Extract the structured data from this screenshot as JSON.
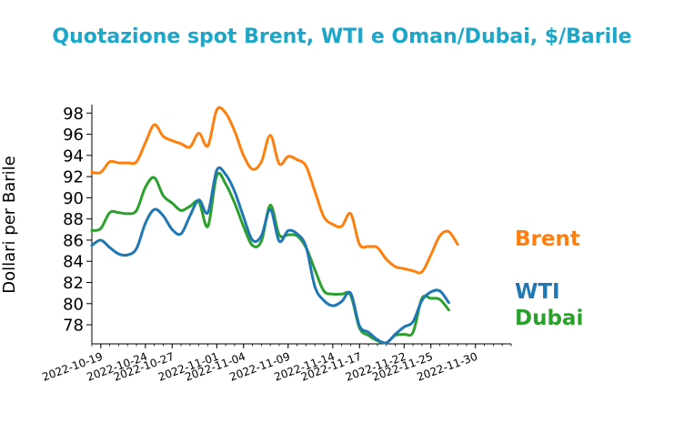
{
  "chart_data": {
    "type": "line",
    "title": "Quotazione spot Brent, WTI e Oman/Dubai, $/Barile",
    "xlabel": "",
    "ylabel": "Dollari per Barile",
    "ylim": [
      76.2,
      98.8
    ],
    "yticks": [
      78,
      80,
      82,
      84,
      86,
      88,
      90,
      92,
      94,
      96,
      98
    ],
    "xlim": [
      "2022-10-18",
      "2022-12-04"
    ],
    "xticks": [
      "2022-10-19",
      "2022-10-24",
      "2022-10-27",
      "2022-11-01",
      "2022-11-04",
      "2022-11-09",
      "2022-11-14",
      "2022-11-17",
      "2022-11-22",
      "2022-11-25",
      "2022-11-30"
    ],
    "grid": false,
    "legend": "inline labels at line ends",
    "x": [
      "2022-10-18",
      "2022-10-19",
      "2022-10-20",
      "2022-10-21",
      "2022-10-22",
      "2022-10-23",
      "2022-10-24",
      "2022-10-25",
      "2022-10-26",
      "2022-10-27",
      "2022-10-28",
      "2022-10-29",
      "2022-10-30",
      "2022-10-31",
      "2022-11-01",
      "2022-11-02",
      "2022-11-03",
      "2022-11-04",
      "2022-11-05",
      "2022-11-06",
      "2022-11-07",
      "2022-11-08",
      "2022-11-09",
      "2022-11-10",
      "2022-11-11",
      "2022-11-12",
      "2022-11-13",
      "2022-11-14",
      "2022-11-15",
      "2022-11-16",
      "2022-11-17",
      "2022-11-18",
      "2022-11-19",
      "2022-11-20",
      "2022-11-21",
      "2022-11-22",
      "2022-11-23",
      "2022-11-24",
      "2022-11-25",
      "2022-11-26",
      "2022-11-27",
      "2022-11-28",
      "2022-11-29",
      "2022-11-30",
      "2022-12-01",
      "2022-12-02",
      "2022-12-03",
      "2022-12-04"
    ],
    "series": [
      {
        "name": "Brent",
        "color": "#ff7f0e",
        "values": [
          92.4,
          92.4,
          93.4,
          93.3,
          93.3,
          93.4,
          95.2,
          96.9,
          95.8,
          95.4,
          95.1,
          94.8,
          96.1,
          94.9,
          98.3,
          98.0,
          96.3,
          94.0,
          92.7,
          93.4,
          95.9,
          93.2,
          93.9,
          93.6,
          93.0,
          90.6,
          88.2,
          87.5,
          87.3,
          88.5,
          85.6,
          85.4,
          85.3,
          84.2,
          83.5,
          83.3,
          83.1,
          83.0,
          84.6,
          86.4,
          86.8,
          85.6,
          null,
          null,
          null,
          null,
          null,
          null
        ]
      },
      {
        "name": "WTI",
        "color": "#1f77b4",
        "values": [
          85.5,
          86.0,
          85.3,
          84.7,
          84.6,
          85.2,
          87.6,
          88.9,
          88.3,
          87.0,
          86.6,
          88.3,
          89.8,
          88.6,
          92.6,
          92.2,
          90.6,
          88.2,
          86.0,
          86.4,
          88.9,
          85.9,
          86.9,
          86.6,
          85.4,
          81.6,
          80.3,
          79.8,
          80.2,
          81.0,
          77.9,
          77.3,
          76.6,
          76.3,
          77.1,
          77.8,
          78.3,
          80.3,
          81.1,
          81.2,
          80.1,
          null,
          null,
          null,
          null,
          null,
          null,
          null
        ]
      },
      {
        "name": "Dubai",
        "color": "#2ca02c",
        "values": [
          86.9,
          87.1,
          88.6,
          88.6,
          88.5,
          88.8,
          91.0,
          91.9,
          90.2,
          89.5,
          88.8,
          89.2,
          89.6,
          87.3,
          92.1,
          91.3,
          89.5,
          87.3,
          85.5,
          85.9,
          89.3,
          86.5,
          86.5,
          86.4,
          85.3,
          83.2,
          81.2,
          80.9,
          80.9,
          80.8,
          77.7,
          77.0,
          76.5,
          76.3,
          77.0,
          77.1,
          77.3,
          80.5,
          80.5,
          80.4,
          79.4,
          null,
          null,
          null,
          null,
          null,
          null,
          null
        ]
      }
    ]
  }
}
